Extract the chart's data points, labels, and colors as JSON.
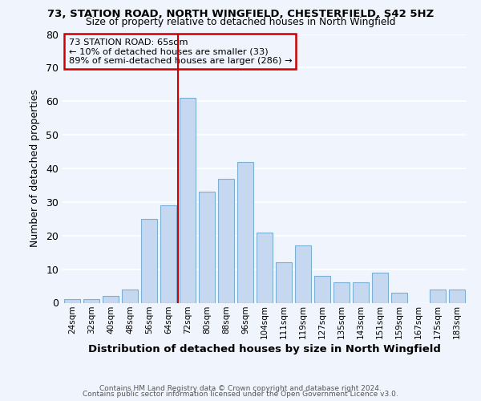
{
  "title1": "73, STATION ROAD, NORTH WINGFIELD, CHESTERFIELD, S42 5HZ",
  "title2": "Size of property relative to detached houses in North Wingfield",
  "xlabel": "Distribution of detached houses by size in North Wingfield",
  "ylabel": "Number of detached properties",
  "bar_labels": [
    "24sqm",
    "32sqm",
    "40sqm",
    "48sqm",
    "56sqm",
    "64sqm",
    "72sqm",
    "80sqm",
    "88sqm",
    "96sqm",
    "104sqm",
    "111sqm",
    "119sqm",
    "127sqm",
    "135sqm",
    "143sqm",
    "151sqm",
    "159sqm",
    "167sqm",
    "175sqm",
    "183sqm"
  ],
  "bar_values": [
    1,
    1,
    2,
    4,
    25,
    29,
    61,
    33,
    37,
    42,
    21,
    12,
    17,
    8,
    6,
    6,
    9,
    3,
    0,
    4,
    4
  ],
  "bar_color": "#c5d8f0",
  "bar_edge_color": "#7bafd4",
  "bg_color": "#f0f4fc",
  "grid_color": "#ffffff",
  "vline_x": 5.5,
  "vline_color": "#cc0000",
  "annotation_title": "73 STATION ROAD: 65sqm",
  "annotation_line1": "← 10% of detached houses are smaller (33)",
  "annotation_line2": "89% of semi-detached houses are larger (286) →",
  "annotation_box_color": "#cc0000",
  "ylim": [
    0,
    80
  ],
  "yticks": [
    0,
    10,
    20,
    30,
    40,
    50,
    60,
    70,
    80
  ],
  "footer1": "Contains HM Land Registry data © Crown copyright and database right 2024.",
  "footer2": "Contains public sector information licensed under the Open Government Licence v3.0."
}
